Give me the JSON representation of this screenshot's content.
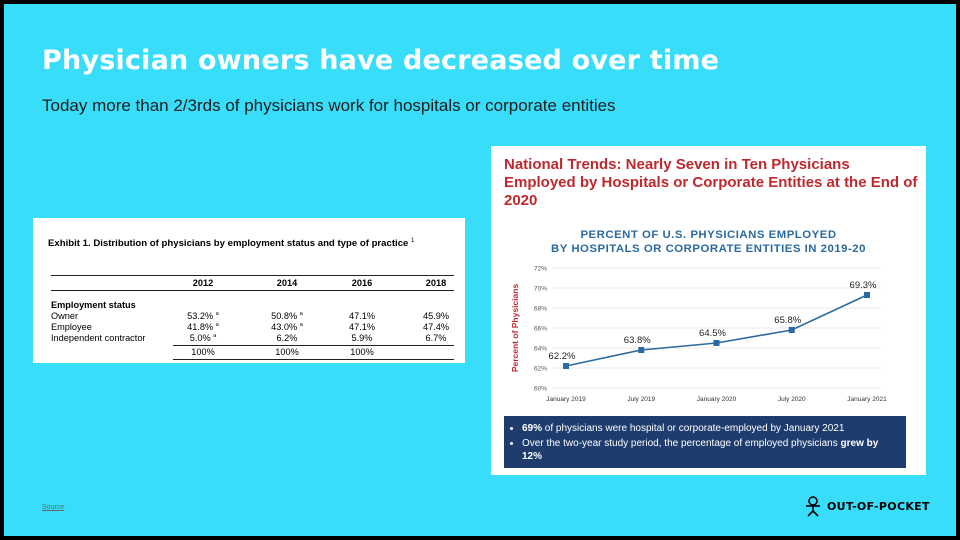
{
  "slide": {
    "title": "Physician owners have decreased over time",
    "subtitle": "Today more than 2/3rds of physicians work for hospitals or corporate entities",
    "source_link": "Source",
    "logo_text": "OUT-OF-POCKET"
  },
  "exhibit": {
    "title": "Exhibit 1. Distribution of physicians by employment status and type of practice",
    "footnote_mark": "1",
    "years": [
      "2012",
      "2014",
      "2016",
      "2018"
    ],
    "section_label": "Employment status",
    "rows": [
      {
        "label": "Owner",
        "values": [
          "53.2%",
          "50.8%",
          "47.1%",
          "45.9%"
        ],
        "marks": [
          "a",
          "a",
          "",
          ""
        ]
      },
      {
        "label": "Employee",
        "values": [
          "41.8%",
          "43.0%",
          "47.1%",
          "47.4%"
        ],
        "marks": [
          "a",
          "a",
          "",
          ""
        ]
      },
      {
        "label": "Independent contractor",
        "values": [
          "5.0%",
          "6.2%",
          "5.9%",
          "6.7%"
        ],
        "marks": [
          "a",
          "",
          "",
          ""
        ]
      }
    ],
    "totals": [
      "100%",
      "100%",
      "100%",
      ""
    ]
  },
  "trend_card": {
    "headline": "National Trends: Nearly Seven in Ten Physicians Employed by Hospitals or Corporate Entities at the End of 2020",
    "bullet1_bold": "69%",
    "bullet1_text": " of physicians were hospital or corporate-employed by January 2021",
    "bullet2_text": "Over the two-year study period, the percentage of employed physicians ",
    "bullet2_bold": "grew by 12%"
  },
  "chart_data": {
    "type": "line",
    "title": "PERCENT OF U.S. PHYSICIANS EMPLOYED BY HOSPITALS OR CORPORATE ENTITIES IN 2019-20",
    "title_lines": [
      "PERCENT OF U.S. PHYSICIANS EMPLOYED",
      "BY HOSPITALS OR CORPORATE ENTITIES IN 2019-20"
    ],
    "ylabel": "Percent of Physicians",
    "xlabel": "",
    "categories": [
      "January 2019",
      "July 2019",
      "January 2020",
      "July 2020",
      "January 2021"
    ],
    "values": [
      62.2,
      63.8,
      64.5,
      65.8,
      69.3
    ],
    "value_labels": [
      "62.2%",
      "63.8%",
      "64.5%",
      "65.8%",
      "69.3%"
    ],
    "ylim": [
      60,
      72
    ],
    "yticks": [
      60,
      62,
      64,
      66,
      68,
      70,
      72
    ],
    "ytick_labels": [
      "60%",
      "62%",
      "64%",
      "66%",
      "68%",
      "70%",
      "72%"
    ],
    "grid": true,
    "color": "#2a6aa0"
  }
}
